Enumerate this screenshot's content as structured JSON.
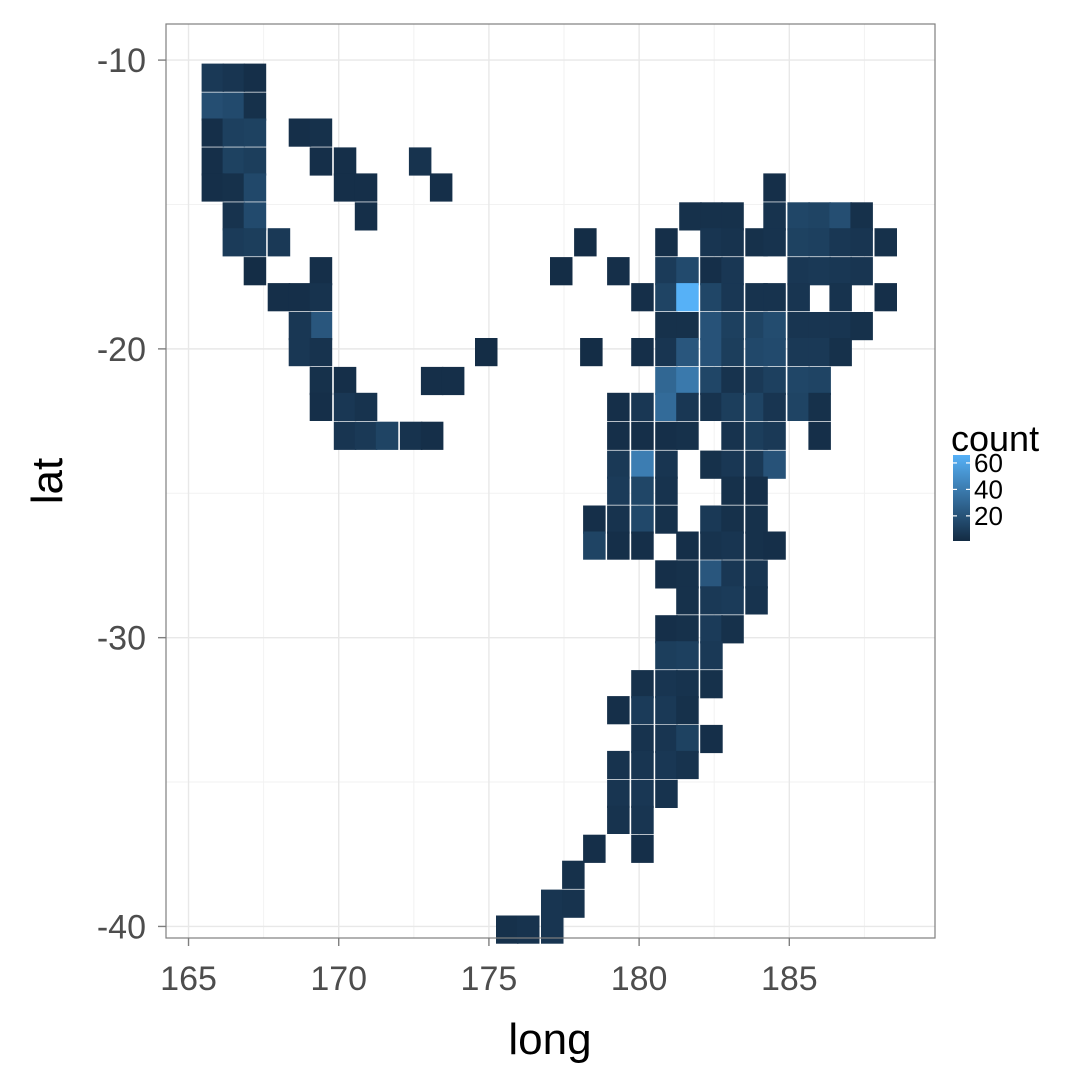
{
  "chart_data": {
    "type": "heatmap",
    "title": "",
    "xlabel": "long",
    "ylabel": "lat",
    "xlim": [
      164.25,
      189.85
    ],
    "ylim": [
      -40.4,
      -8.75
    ],
    "x_ticks": [
      165,
      170,
      175,
      180,
      185
    ],
    "y_ticks": [
      -10,
      -20,
      -30,
      -40
    ],
    "x_tick_labels": [
      "165",
      "170",
      "175",
      "180",
      "185"
    ],
    "y_tick_labels": [
      "-10",
      "-20",
      "-30",
      "-40"
    ],
    "grid": true,
    "bin_width": 0.73,
    "bin_height": 0.955,
    "legend": {
      "title": "count",
      "position": "right",
      "ticks": [
        20,
        40,
        60
      ],
      "tick_labels": [
        "20",
        "40",
        "60"
      ],
      "min": 1,
      "max": 66,
      "low_color": "#132B43",
      "high_color": "#56B1F7"
    },
    "cells": [
      {
        "x": 165.8,
        "y": -10.6,
        "count": 8
      },
      {
        "x": 166.5,
        "y": -10.6,
        "count": 6
      },
      {
        "x": 167.2,
        "y": -10.6,
        "count": 3
      },
      {
        "x": 165.8,
        "y": -11.6,
        "count": 18
      },
      {
        "x": 166.5,
        "y": -11.6,
        "count": 16
      },
      {
        "x": 167.2,
        "y": -11.6,
        "count": 4
      },
      {
        "x": 165.8,
        "y": -12.5,
        "count": 3
      },
      {
        "x": 166.5,
        "y": -12.5,
        "count": 11
      },
      {
        "x": 167.2,
        "y": -12.5,
        "count": 12
      },
      {
        "x": 168.7,
        "y": -12.5,
        "count": 3
      },
      {
        "x": 169.4,
        "y": -12.5,
        "count": 4
      },
      {
        "x": 165.8,
        "y": -13.5,
        "count": 3
      },
      {
        "x": 166.5,
        "y": -13.5,
        "count": 12
      },
      {
        "x": 167.2,
        "y": -13.5,
        "count": 10
      },
      {
        "x": 169.4,
        "y": -13.5,
        "count": 3
      },
      {
        "x": 170.2,
        "y": -13.5,
        "count": 3
      },
      {
        "x": 172.7,
        "y": -13.5,
        "count": 5
      },
      {
        "x": 165.8,
        "y": -14.4,
        "count": 3
      },
      {
        "x": 166.5,
        "y": -14.4,
        "count": 4
      },
      {
        "x": 167.2,
        "y": -14.4,
        "count": 15
      },
      {
        "x": 170.2,
        "y": -14.4,
        "count": 3
      },
      {
        "x": 170.9,
        "y": -14.4,
        "count": 3
      },
      {
        "x": 173.4,
        "y": -14.4,
        "count": 3
      },
      {
        "x": 166.5,
        "y": -15.4,
        "count": 5
      },
      {
        "x": 167.2,
        "y": -15.4,
        "count": 16
      },
      {
        "x": 170.9,
        "y": -15.4,
        "count": 3
      },
      {
        "x": 166.5,
        "y": -16.3,
        "count": 9
      },
      {
        "x": 167.2,
        "y": -16.3,
        "count": 10
      },
      {
        "x": 168.0,
        "y": -16.3,
        "count": 8
      },
      {
        "x": 167.2,
        "y": -17.3,
        "count": 2
      },
      {
        "x": 169.4,
        "y": -17.3,
        "count": 3
      },
      {
        "x": 168.0,
        "y": -18.2,
        "count": 3
      },
      {
        "x": 168.7,
        "y": -18.2,
        "count": 3
      },
      {
        "x": 169.4,
        "y": -18.2,
        "count": 5
      },
      {
        "x": 169.4,
        "y": -19.2,
        "count": 22
      },
      {
        "x": 168.7,
        "y": -19.2,
        "count": 7
      },
      {
        "x": 168.7,
        "y": -20.1,
        "count": 7
      },
      {
        "x": 169.4,
        "y": -20.1,
        "count": 5
      },
      {
        "x": 169.4,
        "y": -21.1,
        "count": 4
      },
      {
        "x": 170.2,
        "y": -21.1,
        "count": 3
      },
      {
        "x": 169.4,
        "y": -22.0,
        "count": 3
      },
      {
        "x": 170.2,
        "y": -22.0,
        "count": 7
      },
      {
        "x": 170.9,
        "y": -22.0,
        "count": 5
      },
      {
        "x": 170.2,
        "y": -23.0,
        "count": 6
      },
      {
        "x": 170.9,
        "y": -23.0,
        "count": 8
      },
      {
        "x": 171.6,
        "y": -23.0,
        "count": 13
      },
      {
        "x": 172.4,
        "y": -23.0,
        "count": 5
      },
      {
        "x": 173.1,
        "y": -23.0,
        "count": 3
      },
      {
        "x": 173.1,
        "y": -21.1,
        "count": 3
      },
      {
        "x": 173.8,
        "y": -21.1,
        "count": 3
      },
      {
        "x": 174.9,
        "y": -20.1,
        "count": 2
      },
      {
        "x": 178.2,
        "y": -16.3,
        "count": 2
      },
      {
        "x": 177.4,
        "y": -17.3,
        "count": 2
      },
      {
        "x": 179.3,
        "y": -17.3,
        "count": 3
      },
      {
        "x": 178.4,
        "y": -20.1,
        "count": 2
      },
      {
        "x": 184.5,
        "y": -14.4,
        "count": 3
      },
      {
        "x": 181.7,
        "y": -15.4,
        "count": 4
      },
      {
        "x": 182.4,
        "y": -15.4,
        "count": 4
      },
      {
        "x": 183.1,
        "y": -15.4,
        "count": 4
      },
      {
        "x": 184.5,
        "y": -15.4,
        "count": 5
      },
      {
        "x": 185.3,
        "y": -15.4,
        "count": 14
      },
      {
        "x": 186.0,
        "y": -15.4,
        "count": 13
      },
      {
        "x": 186.7,
        "y": -15.4,
        "count": 18
      },
      {
        "x": 187.4,
        "y": -15.4,
        "count": 4
      },
      {
        "x": 180.9,
        "y": -16.3,
        "count": 3
      },
      {
        "x": 182.4,
        "y": -16.3,
        "count": 6
      },
      {
        "x": 183.1,
        "y": -16.3,
        "count": 5
      },
      {
        "x": 183.9,
        "y": -16.3,
        "count": 4
      },
      {
        "x": 184.5,
        "y": -16.3,
        "count": 5
      },
      {
        "x": 185.3,
        "y": -16.3,
        "count": 12
      },
      {
        "x": 186.0,
        "y": -16.3,
        "count": 11
      },
      {
        "x": 186.7,
        "y": -16.3,
        "count": 7
      },
      {
        "x": 187.4,
        "y": -16.3,
        "count": 6
      },
      {
        "x": 188.2,
        "y": -16.3,
        "count": 4
      },
      {
        "x": 180.9,
        "y": -17.3,
        "count": 9
      },
      {
        "x": 181.6,
        "y": -17.3,
        "count": 16
      },
      {
        "x": 182.4,
        "y": -17.3,
        "count": 3
      },
      {
        "x": 183.1,
        "y": -17.3,
        "count": 7
      },
      {
        "x": 185.3,
        "y": -17.3,
        "count": 7
      },
      {
        "x": 186.0,
        "y": -17.3,
        "count": 8
      },
      {
        "x": 186.7,
        "y": -17.3,
        "count": 7
      },
      {
        "x": 187.4,
        "y": -17.3,
        "count": 6
      },
      {
        "x": 180.1,
        "y": -18.2,
        "count": 3
      },
      {
        "x": 180.9,
        "y": -18.2,
        "count": 13
      },
      {
        "x": 181.6,
        "y": -18.2,
        "count": 66
      },
      {
        "x": 182.4,
        "y": -18.2,
        "count": 14
      },
      {
        "x": 183.1,
        "y": -18.2,
        "count": 7
      },
      {
        "x": 183.9,
        "y": -18.2,
        "count": 5
      },
      {
        "x": 184.5,
        "y": -18.2,
        "count": 5
      },
      {
        "x": 185.3,
        "y": -18.2,
        "count": 6
      },
      {
        "x": 186.7,
        "y": -18.2,
        "count": 5
      },
      {
        "x": 188.2,
        "y": -18.2,
        "count": 3
      },
      {
        "x": 180.9,
        "y": -19.2,
        "count": 4
      },
      {
        "x": 181.6,
        "y": -19.2,
        "count": 4
      },
      {
        "x": 182.4,
        "y": -19.2,
        "count": 20
      },
      {
        "x": 183.1,
        "y": -19.2,
        "count": 11
      },
      {
        "x": 183.9,
        "y": -19.2,
        "count": 13
      },
      {
        "x": 184.5,
        "y": -19.2,
        "count": 17
      },
      {
        "x": 185.3,
        "y": -19.2,
        "count": 6
      },
      {
        "x": 186.0,
        "y": -19.2,
        "count": 6
      },
      {
        "x": 186.7,
        "y": -19.2,
        "count": 6
      },
      {
        "x": 187.4,
        "y": -19.2,
        "count": 4
      },
      {
        "x": 180.1,
        "y": -20.1,
        "count": 3
      },
      {
        "x": 180.9,
        "y": -20.1,
        "count": 6
      },
      {
        "x": 181.6,
        "y": -20.1,
        "count": 22
      },
      {
        "x": 182.4,
        "y": -20.1,
        "count": 20
      },
      {
        "x": 183.1,
        "y": -20.1,
        "count": 10
      },
      {
        "x": 183.9,
        "y": -20.1,
        "count": 15
      },
      {
        "x": 184.5,
        "y": -20.1,
        "count": 16
      },
      {
        "x": 185.3,
        "y": -20.1,
        "count": 8
      },
      {
        "x": 186.0,
        "y": -20.1,
        "count": 8
      },
      {
        "x": 186.7,
        "y": -20.1,
        "count": 4
      },
      {
        "x": 180.9,
        "y": -21.1,
        "count": 30
      },
      {
        "x": 181.6,
        "y": -21.1,
        "count": 39
      },
      {
        "x": 182.4,
        "y": -21.1,
        "count": 14
      },
      {
        "x": 183.1,
        "y": -21.1,
        "count": 5
      },
      {
        "x": 183.9,
        "y": -21.1,
        "count": 8
      },
      {
        "x": 184.5,
        "y": -21.1,
        "count": 11
      },
      {
        "x": 185.3,
        "y": -21.1,
        "count": 14
      },
      {
        "x": 186.0,
        "y": -21.1,
        "count": 13
      },
      {
        "x": 179.3,
        "y": -22.0,
        "count": 3
      },
      {
        "x": 180.1,
        "y": -22.0,
        "count": 7
      },
      {
        "x": 180.9,
        "y": -22.0,
        "count": 32
      },
      {
        "x": 181.6,
        "y": -22.0,
        "count": 7
      },
      {
        "x": 182.4,
        "y": -22.0,
        "count": 5
      },
      {
        "x": 183.1,
        "y": -22.0,
        "count": 10
      },
      {
        "x": 183.9,
        "y": -22.0,
        "count": 13
      },
      {
        "x": 184.5,
        "y": -22.0,
        "count": 6
      },
      {
        "x": 185.3,
        "y": -22.0,
        "count": 13
      },
      {
        "x": 186.0,
        "y": -22.0,
        "count": 4
      },
      {
        "x": 179.3,
        "y": -23.0,
        "count": 3
      },
      {
        "x": 180.1,
        "y": -23.0,
        "count": 3
      },
      {
        "x": 180.9,
        "y": -23.0,
        "count": 3
      },
      {
        "x": 181.6,
        "y": -23.0,
        "count": 4
      },
      {
        "x": 183.1,
        "y": -23.0,
        "count": 5
      },
      {
        "x": 183.9,
        "y": -23.0,
        "count": 10
      },
      {
        "x": 184.5,
        "y": -23.0,
        "count": 8
      },
      {
        "x": 186.0,
        "y": -23.0,
        "count": 3
      },
      {
        "x": 179.3,
        "y": -24.0,
        "count": 8
      },
      {
        "x": 180.1,
        "y": -24.0,
        "count": 41
      },
      {
        "x": 180.9,
        "y": -24.0,
        "count": 6
      },
      {
        "x": 182.4,
        "y": -24.0,
        "count": 4
      },
      {
        "x": 183.1,
        "y": -24.0,
        "count": 7
      },
      {
        "x": 183.9,
        "y": -24.0,
        "count": 8
      },
      {
        "x": 184.5,
        "y": -24.0,
        "count": 20
      },
      {
        "x": 179.3,
        "y": -24.9,
        "count": 9
      },
      {
        "x": 180.1,
        "y": -24.9,
        "count": 14
      },
      {
        "x": 180.9,
        "y": -24.9,
        "count": 5
      },
      {
        "x": 183.1,
        "y": -24.9,
        "count": 4
      },
      {
        "x": 183.9,
        "y": -24.9,
        "count": 3
      },
      {
        "x": 178.5,
        "y": -25.9,
        "count": 3
      },
      {
        "x": 179.3,
        "y": -25.9,
        "count": 5
      },
      {
        "x": 180.1,
        "y": -25.9,
        "count": 15
      },
      {
        "x": 180.9,
        "y": -25.9,
        "count": 4
      },
      {
        "x": 182.4,
        "y": -25.9,
        "count": 8
      },
      {
        "x": 183.1,
        "y": -25.9,
        "count": 4
      },
      {
        "x": 183.9,
        "y": -25.9,
        "count": 4
      },
      {
        "x": 178.5,
        "y": -26.8,
        "count": 13
      },
      {
        "x": 179.3,
        "y": -26.8,
        "count": 3
      },
      {
        "x": 180.1,
        "y": -26.8,
        "count": 3
      },
      {
        "x": 181.6,
        "y": -26.8,
        "count": 3
      },
      {
        "x": 182.4,
        "y": -26.8,
        "count": 5
      },
      {
        "x": 183.1,
        "y": -26.8,
        "count": 6
      },
      {
        "x": 183.9,
        "y": -26.8,
        "count": 4
      },
      {
        "x": 184.5,
        "y": -26.8,
        "count": 3
      },
      {
        "x": 180.9,
        "y": -27.8,
        "count": 3
      },
      {
        "x": 181.6,
        "y": -27.8,
        "count": 4
      },
      {
        "x": 182.4,
        "y": -27.8,
        "count": 22
      },
      {
        "x": 183.1,
        "y": -27.8,
        "count": 7
      },
      {
        "x": 183.9,
        "y": -27.8,
        "count": 6
      },
      {
        "x": 181.6,
        "y": -28.7,
        "count": 4
      },
      {
        "x": 182.4,
        "y": -28.7,
        "count": 8
      },
      {
        "x": 183.1,
        "y": -28.7,
        "count": 9
      },
      {
        "x": 183.9,
        "y": -28.7,
        "count": 5
      },
      {
        "x": 180.9,
        "y": -29.7,
        "count": 3
      },
      {
        "x": 181.6,
        "y": -29.7,
        "count": 4
      },
      {
        "x": 182.4,
        "y": -29.7,
        "count": 9
      },
      {
        "x": 183.1,
        "y": -29.7,
        "count": 4
      },
      {
        "x": 180.9,
        "y": -30.6,
        "count": 10
      },
      {
        "x": 181.6,
        "y": -30.6,
        "count": 11
      },
      {
        "x": 182.4,
        "y": -30.6,
        "count": 8
      },
      {
        "x": 180.1,
        "y": -31.6,
        "count": 4
      },
      {
        "x": 180.9,
        "y": -31.6,
        "count": 6
      },
      {
        "x": 181.6,
        "y": -31.6,
        "count": 5
      },
      {
        "x": 182.4,
        "y": -31.6,
        "count": 4
      },
      {
        "x": 179.3,
        "y": -32.5,
        "count": 3
      },
      {
        "x": 180.1,
        "y": -32.5,
        "count": 9
      },
      {
        "x": 180.9,
        "y": -32.5,
        "count": 8
      },
      {
        "x": 181.6,
        "y": -32.5,
        "count": 4
      },
      {
        "x": 180.1,
        "y": -33.5,
        "count": 5
      },
      {
        "x": 180.9,
        "y": -33.5,
        "count": 6
      },
      {
        "x": 181.6,
        "y": -33.5,
        "count": 12
      },
      {
        "x": 182.4,
        "y": -33.5,
        "count": 3
      },
      {
        "x": 179.3,
        "y": -34.4,
        "count": 5
      },
      {
        "x": 180.1,
        "y": -34.4,
        "count": 6
      },
      {
        "x": 180.9,
        "y": -34.4,
        "count": 7
      },
      {
        "x": 181.6,
        "y": -34.4,
        "count": 5
      },
      {
        "x": 179.3,
        "y": -35.4,
        "count": 6
      },
      {
        "x": 180.1,
        "y": -35.4,
        "count": 7
      },
      {
        "x": 180.9,
        "y": -35.4,
        "count": 5
      },
      {
        "x": 179.3,
        "y": -36.3,
        "count": 5
      },
      {
        "x": 180.1,
        "y": -36.3,
        "count": 6
      },
      {
        "x": 178.5,
        "y": -37.3,
        "count": 3
      },
      {
        "x": 180.1,
        "y": -37.3,
        "count": 3
      },
      {
        "x": 177.8,
        "y": -38.2,
        "count": 4
      },
      {
        "x": 177.1,
        "y": -39.2,
        "count": 6
      },
      {
        "x": 177.8,
        "y": -39.2,
        "count": 5
      },
      {
        "x": 175.6,
        "y": -40.1,
        "count": 4
      },
      {
        "x": 176.3,
        "y": -40.1,
        "count": 5
      },
      {
        "x": 177.1,
        "y": -40.1,
        "count": 6
      }
    ]
  }
}
